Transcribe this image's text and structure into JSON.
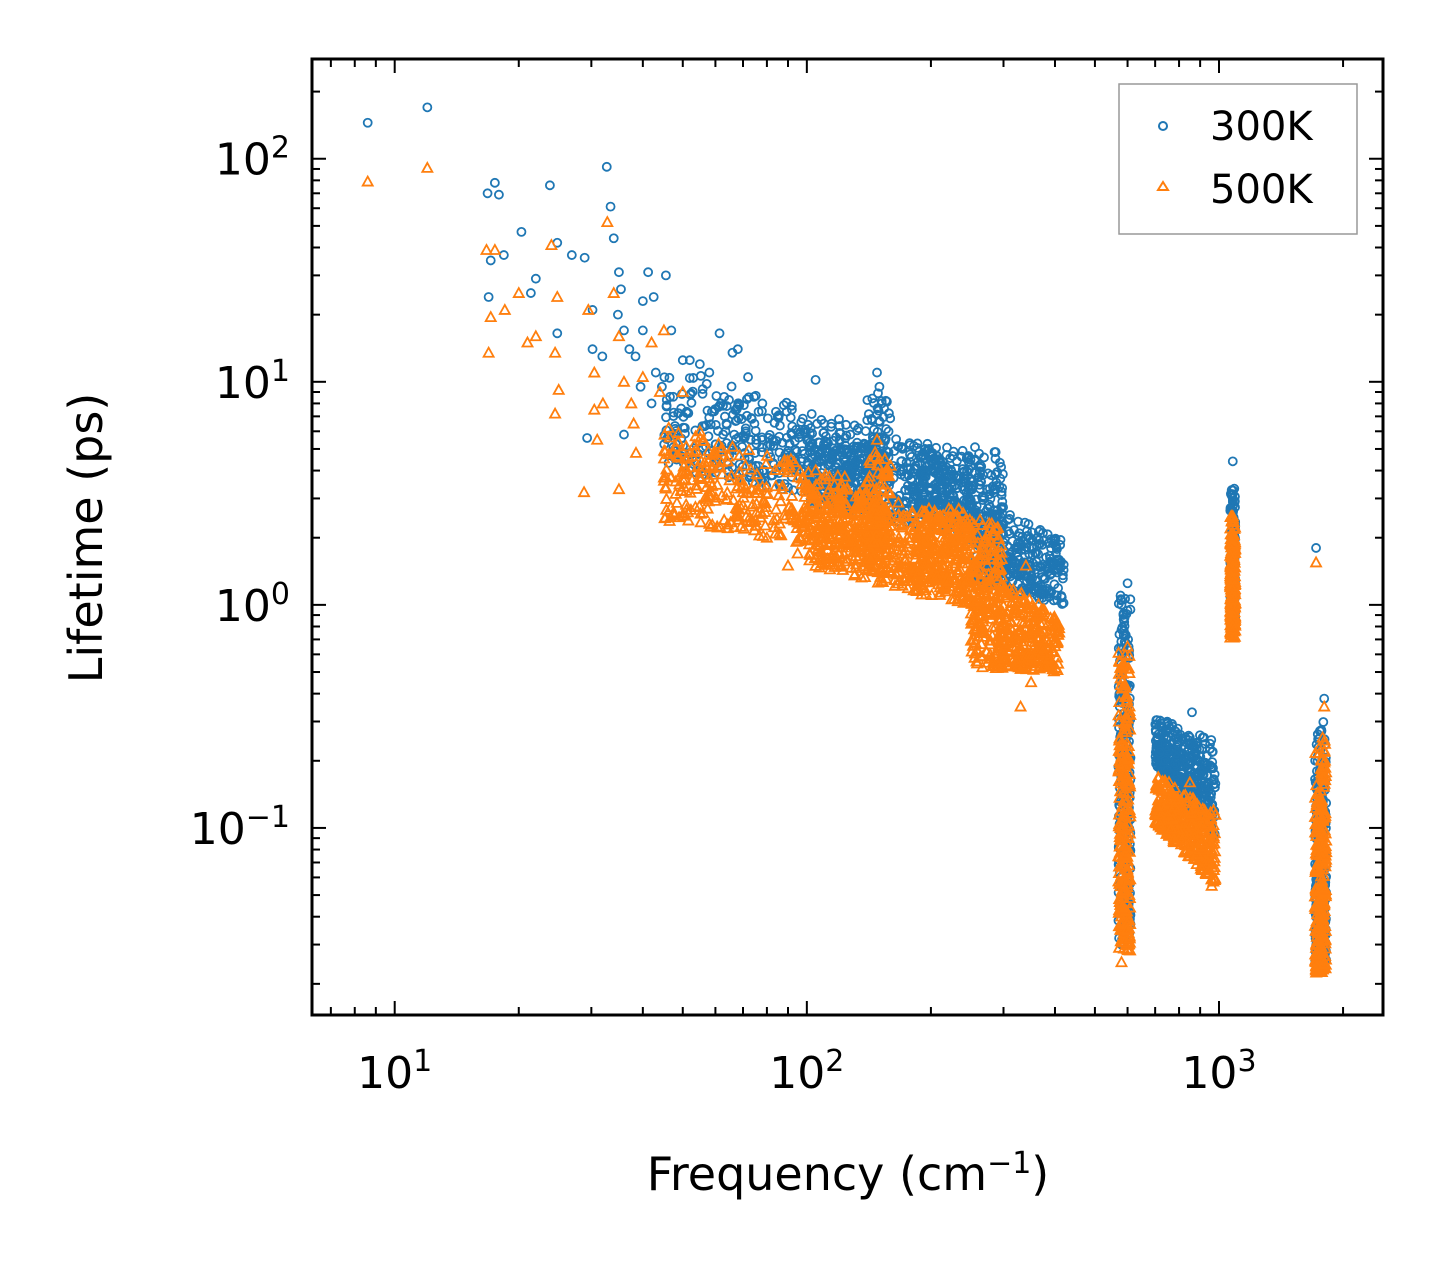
{
  "chart_data": {
    "type": "scatter",
    "xscale": "log",
    "yscale": "log",
    "xlim": [
      6.3,
      2500
    ],
    "ylim": [
      0.0145,
      280
    ],
    "xlabel": {
      "text": "Frequency (cm",
      "sup": "−1",
      "suffix": ")"
    },
    "ylabel": "Lifetime (ps)",
    "x_ticks": [
      {
        "value": 10,
        "base": "10",
        "exp": "1"
      },
      {
        "value": 100,
        "base": "10",
        "exp": "2"
      },
      {
        "value": 1000,
        "base": "10",
        "exp": "3"
      }
    ],
    "y_ticks": [
      {
        "value": 0.1,
        "base": "10",
        "exp": "−1"
      },
      {
        "value": 1,
        "base": "10",
        "exp": "0"
      },
      {
        "value": 10,
        "base": "10",
        "exp": "1"
      },
      {
        "value": 100,
        "base": "10",
        "exp": "2"
      }
    ],
    "legend_position": "top-right",
    "series": [
      {
        "name": "300K",
        "color": "#1f77b4",
        "marker": "circle",
        "points": [
          [
            8.6,
            145
          ],
          [
            12.0,
            170
          ],
          [
            16.8,
            70
          ],
          [
            17.5,
            78
          ],
          [
            17.9,
            69
          ],
          [
            16.9,
            24
          ],
          [
            17.1,
            35
          ],
          [
            18.4,
            37
          ],
          [
            20.3,
            47
          ],
          [
            21.4,
            25
          ],
          [
            22.0,
            29
          ],
          [
            23.8,
            76
          ],
          [
            24.8,
            42
          ],
          [
            24.8,
            16.5
          ],
          [
            26.9,
            37
          ],
          [
            28.9,
            36
          ],
          [
            29.3,
            5.6
          ],
          [
            30.2,
            14
          ],
          [
            30.2,
            21
          ],
          [
            31.9,
            13
          ],
          [
            32.7,
            92
          ],
          [
            33.4,
            61
          ],
          [
            34.0,
            44
          ],
          [
            35.0,
            31
          ],
          [
            35.4,
            26
          ],
          [
            34.8,
            20
          ],
          [
            36.0,
            17
          ],
          [
            37.1,
            14
          ],
          [
            38.4,
            13
          ],
          [
            40.0,
            17
          ],
          [
            40.0,
            23
          ],
          [
            41.2,
            31
          ],
          [
            42.5,
            24
          ],
          [
            43.0,
            11
          ],
          [
            45.5,
            30
          ],
          [
            46.9,
            17
          ],
          [
            36.0,
            5.8
          ],
          [
            39.5,
            9.5
          ],
          [
            42.0,
            8.0
          ],
          [
            44.5,
            9.5
          ],
          [
            50.0,
            12.5
          ],
          [
            52.0,
            12.5
          ],
          [
            55.0,
            12.0
          ],
          [
            58.0,
            11.0
          ],
          [
            61.4,
            16.5
          ],
          [
            66.0,
            13.5
          ],
          [
            68.0,
            14.0
          ],
          [
            72.0,
            10.5
          ],
          [
            78.0,
            8.0
          ],
          [
            85.0,
            7.0
          ],
          [
            92.0,
            7.5
          ],
          [
            105.0,
            10.2
          ],
          [
            110.0,
            6.5
          ],
          [
            120.0,
            5.5
          ],
          [
            148.0,
            11.0
          ],
          [
            150.0,
            9.5
          ],
          [
            152.0,
            8.0
          ],
          [
            178.0,
            5.2
          ],
          [
            198.0,
            5.0
          ],
          [
            232.0,
            3.8
          ],
          [
            264.0,
            3.6
          ],
          [
            298.0,
            2.9
          ],
          [
            345.0,
            2.3
          ],
          [
            405.0,
            1.05
          ],
          [
            580.0,
            1.0
          ],
          [
            600.0,
            1.25
          ],
          [
            760.0,
            0.28
          ],
          [
            860.0,
            0.33
          ],
          [
            1080.0,
            4.4
          ],
          [
            1080.0,
            3.0
          ],
          [
            1080.0,
            1.8
          ],
          [
            1080.0,
            1.0
          ],
          [
            1720.0,
            1.8
          ],
          [
            1800.0,
            0.38
          ],
          [
            1740.0,
            0.25
          ],
          [
            580.0,
            0.03
          ],
          [
            580.0,
            0.06
          ],
          [
            900.0,
            0.12
          ],
          [
            960.0,
            0.09
          ]
        ],
        "clusters": [
          {
            "f0": 45,
            "f1": 150,
            "ylog_start": [
              0.62,
              1.08
            ],
            "ylog_end": [
              0.42,
              0.78
            ],
            "count": 420
          },
          {
            "f0": 100,
            "f1": 300,
            "ylog_start": [
              0.45,
              0.8
            ],
            "ylog_end": [
              0.28,
              0.7
            ],
            "count": 520
          },
          {
            "f0": 140,
            "f1": 160,
            "ylog_start": [
              0.45,
              0.95
            ],
            "ylog_end": [
              0.45,
              0.95
            ],
            "count": 80
          },
          {
            "f0": 180,
            "f1": 250,
            "ylog_start": [
              0.4,
              0.72
            ],
            "ylog_end": [
              0.35,
              0.7
            ],
            "count": 160
          },
          {
            "f0": 250,
            "f1": 420,
            "ylog_start": [
              0.1,
              0.48
            ],
            "ylog_end": [
              0.0,
              0.3
            ],
            "count": 360
          },
          {
            "f0": 570,
            "f1": 610,
            "ylog_start": [
              -1.5,
              0.05
            ],
            "ylog_end": [
              -1.5,
              0.05
            ],
            "count": 260
          },
          {
            "f0": 700,
            "f1": 980,
            "ylog_start": [
              -0.72,
              -0.5
            ],
            "ylog_end": [
              -1.05,
              -0.6
            ],
            "count": 380
          },
          {
            "f0": 1065,
            "f1": 1095,
            "ylog_start": [
              -0.1,
              0.55
            ],
            "ylog_end": [
              -0.1,
              0.55
            ],
            "count": 220
          },
          {
            "f0": 1710,
            "f1": 1820,
            "ylog_start": [
              -1.62,
              -0.55
            ],
            "ylog_end": [
              -1.62,
              -0.5
            ],
            "count": 260
          }
        ]
      },
      {
        "name": "500K",
        "color": "#ff7f0e",
        "marker": "triangle",
        "points": [
          [
            8.6,
            79
          ],
          [
            12.0,
            91
          ],
          [
            16.7,
            39
          ],
          [
            16.9,
            13.5
          ],
          [
            17.1,
            19.5
          ],
          [
            17.5,
            39
          ],
          [
            18.5,
            21
          ],
          [
            20.0,
            25
          ],
          [
            21.0,
            15
          ],
          [
            22.0,
            16
          ],
          [
            24.0,
            41
          ],
          [
            24.5,
            13.5
          ],
          [
            24.8,
            24
          ],
          [
            25.0,
            9.2
          ],
          [
            24.5,
            7.2
          ],
          [
            28.8,
            3.2
          ],
          [
            29.5,
            21
          ],
          [
            30.5,
            11
          ],
          [
            30.5,
            7.5
          ],
          [
            31.0,
            5.5
          ],
          [
            32.0,
            8.0
          ],
          [
            32.8,
            52
          ],
          [
            34.0,
            25
          ],
          [
            35.0,
            16
          ],
          [
            35.0,
            3.3
          ],
          [
            36.0,
            10
          ],
          [
            37.5,
            8.0
          ],
          [
            38.0,
            6.5
          ],
          [
            38.5,
            4.8
          ],
          [
            40.0,
            10.5
          ],
          [
            42.0,
            15
          ],
          [
            44.0,
            9.0
          ],
          [
            45.0,
            17
          ],
          [
            50.0,
            9.0
          ],
          [
            55.0,
            6.0
          ],
          [
            60.0,
            4.8
          ],
          [
            70.0,
            3.2
          ],
          [
            75.0,
            2.4
          ],
          [
            80.0,
            2.0
          ],
          [
            90.0,
            1.5
          ],
          [
            95.0,
            1.7
          ],
          [
            100.0,
            2.5
          ],
          [
            148.0,
            5.5
          ],
          [
            150.0,
            4.5
          ],
          [
            210.0,
            2.5
          ],
          [
            232.0,
            2.5
          ],
          [
            260.0,
            1.9
          ],
          [
            290.0,
            1.6
          ],
          [
            340.0,
            1.5
          ],
          [
            400.0,
            0.68
          ],
          [
            330.0,
            0.35
          ],
          [
            350.0,
            0.45
          ],
          [
            600.0,
            0.65
          ],
          [
            580.0,
            0.025
          ],
          [
            720.0,
            0.15
          ],
          [
            850.0,
            0.16
          ],
          [
            960.0,
            0.055
          ],
          [
            1080.0,
            2.5
          ],
          [
            1080.0,
            0.8
          ],
          [
            1720.0,
            1.55
          ],
          [
            1800.0,
            0.35
          ],
          [
            1720.0,
            0.023
          ]
        ],
        "clusters": [
          {
            "f0": 45,
            "f1": 150,
            "ylog_start": [
              0.38,
              0.82
            ],
            "ylog_end": [
              0.22,
              0.55
            ],
            "count": 420
          },
          {
            "f0": 100,
            "f1": 300,
            "ylog_start": [
              0.18,
              0.55
            ],
            "ylog_end": [
              -0.05,
              0.4
            ],
            "count": 560
          },
          {
            "f0": 140,
            "f1": 160,
            "ylog_start": [
              0.2,
              0.7
            ],
            "ylog_end": [
              0.2,
              0.7
            ],
            "count": 80
          },
          {
            "f0": 180,
            "f1": 250,
            "ylog_start": [
              0.1,
              0.45
            ],
            "ylog_end": [
              0.05,
              0.42
            ],
            "count": 160
          },
          {
            "f0": 250,
            "f1": 410,
            "ylog_start": [
              -0.28,
              0.2
            ],
            "ylog_end": [
              -0.3,
              -0.05
            ],
            "count": 380
          },
          {
            "f0": 570,
            "f1": 610,
            "ylog_start": [
              -1.55,
              -0.2
            ],
            "ylog_end": [
              -1.55,
              -0.2
            ],
            "count": 260
          },
          {
            "f0": 700,
            "f1": 980,
            "ylog_start": [
              -0.98,
              -0.75
            ],
            "ylog_end": [
              -1.25,
              -0.92
            ],
            "count": 380
          },
          {
            "f0": 1065,
            "f1": 1095,
            "ylog_start": [
              -0.15,
              0.4
            ],
            "ylog_end": [
              -0.15,
              0.4
            ],
            "count": 220
          },
          {
            "f0": 1710,
            "f1": 1820,
            "ylog_start": [
              -1.65,
              -0.65
            ],
            "ylog_end": [
              -1.65,
              -0.55
            ],
            "count": 260
          }
        ]
      }
    ]
  }
}
